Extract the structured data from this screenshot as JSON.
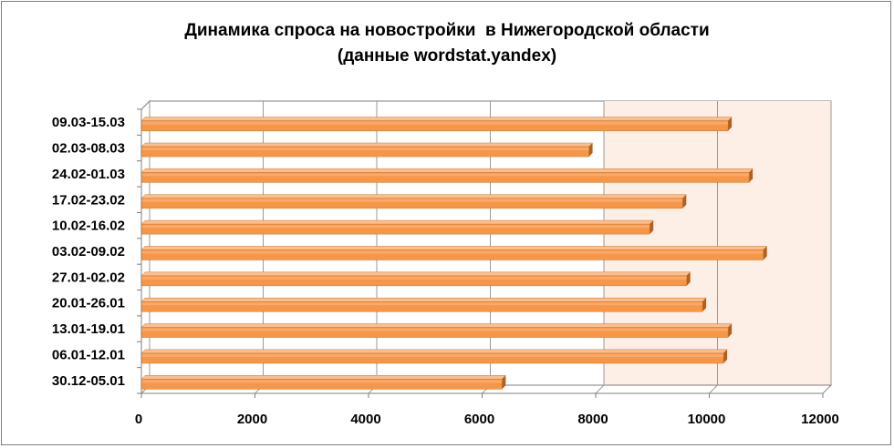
{
  "chart_data": {
    "type": "bar",
    "orientation": "horizontal",
    "style": "3d",
    "title": "Динамика спроса на новостройки  в Нижегородской области",
    "subtitle": "(данные wordstat.yandex)",
    "categories": [
      "30.12-05.01",
      "06.01-12.01",
      "13.01-19.01",
      "20.01-26.01",
      "27.01-02.02",
      "03.02-09.02",
      "10.02-16.02",
      "17.02-23.02",
      "24.02-01.03",
      "02.03-08.03",
      "09.03-15.03"
    ],
    "values": [
      6350,
      10250,
      10330,
      9880,
      9600,
      10950,
      8950,
      9530,
      10700,
      7880,
      10330
    ],
    "xlim": [
      0,
      12000
    ],
    "xticks": [
      0,
      2000,
      4000,
      6000,
      8000,
      10000,
      12000
    ],
    "x_tick_labels": [
      "0",
      "2000",
      "4000",
      "6000",
      "8000",
      "10000",
      "12000"
    ],
    "xlabel": "",
    "ylabel": "",
    "grid": true,
    "legend": "none",
    "colors": {
      "bar_front": "#f79646",
      "bar_top": "#fbbf8f",
      "bar_side": "#b45f1c",
      "plot_wall": "#fdeee6",
      "grid": "#9a9a9a",
      "axis": "#7f7f7f"
    }
  }
}
